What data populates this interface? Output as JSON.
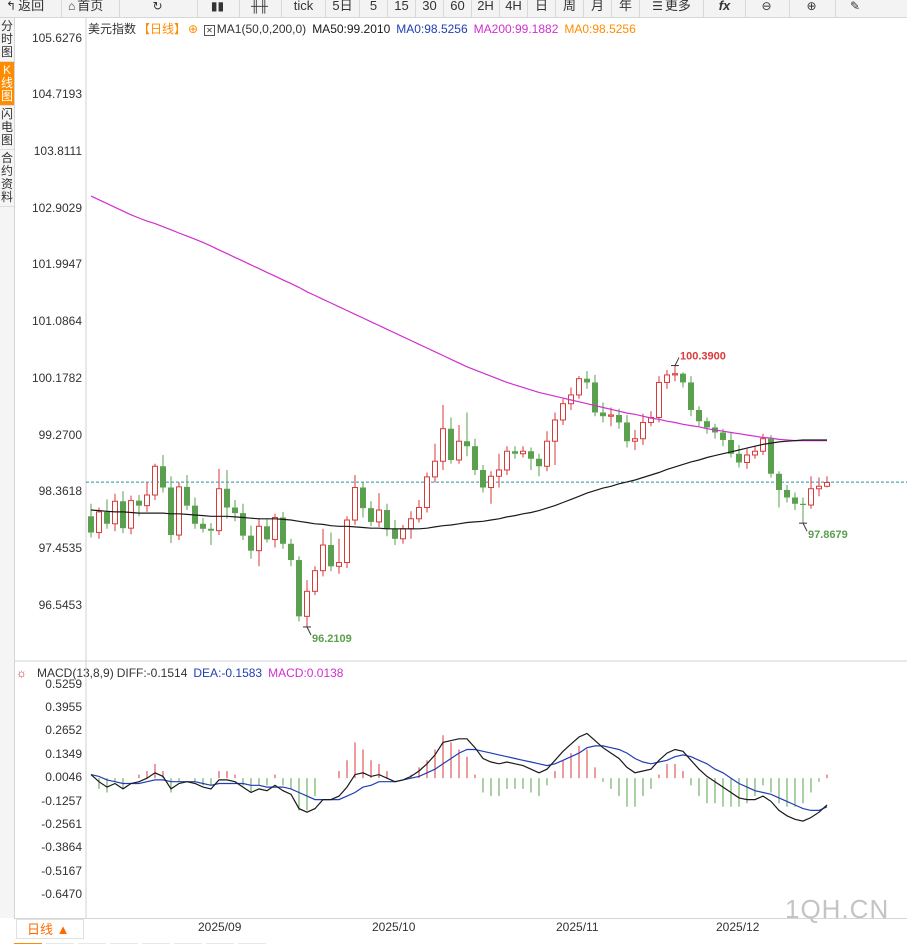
{
  "toolbar": {
    "back_label": "返回",
    "home_label": "首页",
    "tick_label": "tick",
    "periods": [
      "5日",
      "5",
      "15",
      "30",
      "60",
      "2H",
      "4H",
      "日",
      "周",
      "月",
      "年"
    ],
    "more_label": "更多",
    "fx_label": "fx"
  },
  "sidebar": {
    "items": [
      "分时图",
      "K线图",
      "闪电图",
      "合约资料"
    ],
    "active_index": 1
  },
  "main_legend": {
    "symbol": "美元指数",
    "period": "【日线】",
    "ma_name": "MA1(50,0,200,0)",
    "ma50": "MA50:99.2010",
    "ma0a": "MA0:98.5256",
    "ma200": "MA200:99.1882",
    "ma0b": "MA0:98.5256"
  },
  "macd_legend": {
    "name": "MACD(13,8,9)",
    "diff": "DIFF:-0.1514",
    "dea": "DEA:-0.1583",
    "macd": "MACD:0.0138"
  },
  "colors": {
    "up": "#d93a3a",
    "down": "#5aa04e",
    "ma50": "#1a1a1a",
    "ma200": "#d02fcf",
    "current": "#2a8f9c",
    "accent": "#ff8c00"
  },
  "chart_data": [
    {
      "type": "candlestick",
      "title": "美元指数 日线",
      "x_labels": [
        "2025/09",
        "2025/10",
        "2025/11",
        "2025/12"
      ],
      "y_ticks": [
        "105.6276",
        "104.7193",
        "103.8111",
        "102.9029",
        "101.9947",
        "101.0864",
        "100.1782",
        "99.2700",
        "98.3618",
        "97.4535",
        "96.5453"
      ],
      "ylim": [
        95.8,
        106.1
      ],
      "current_price": 98.5256,
      "high_label": "100.3900",
      "low_labels": [
        "96.2109",
        "97.8679"
      ],
      "candles": [
        [
          97.98,
          97.72,
          98.18,
          97.64
        ],
        [
          97.72,
          98.05,
          98.12,
          97.62
        ],
        [
          98.05,
          97.86,
          98.25,
          97.78
        ],
        [
          97.86,
          98.22,
          98.34,
          97.74
        ],
        [
          98.22,
          97.79,
          98.38,
          97.71
        ],
        [
          97.79,
          98.23,
          98.31,
          97.69
        ],
        [
          98.23,
          98.15,
          98.32,
          97.98
        ],
        [
          98.15,
          98.32,
          98.52,
          98.05
        ],
        [
          98.32,
          98.78,
          98.82,
          98.24
        ],
        [
          98.78,
          98.44,
          98.96,
          98.36
        ],
        [
          98.44,
          97.68,
          98.62,
          97.55
        ],
        [
          97.68,
          98.45,
          98.52,
          97.6
        ],
        [
          98.45,
          98.15,
          98.64,
          98.08
        ],
        [
          98.15,
          97.86,
          98.28,
          97.78
        ],
        [
          97.86,
          97.78,
          97.95,
          97.72
        ],
        [
          97.78,
          97.75,
          97.87,
          97.52
        ],
        [
          97.75,
          98.42,
          98.74,
          97.68
        ],
        [
          98.42,
          98.12,
          98.72,
          97.94
        ],
        [
          98.12,
          98.03,
          98.24,
          97.9
        ],
        [
          98.03,
          97.67,
          98.18,
          97.6
        ],
        [
          97.67,
          97.43,
          97.83,
          97.3
        ],
        [
          97.43,
          97.82,
          97.95,
          97.18
        ],
        [
          97.82,
          97.61,
          97.93,
          97.56
        ],
        [
          97.61,
          97.96,
          98.02,
          97.48
        ],
        [
          97.96,
          97.54,
          98.05,
          97.46
        ],
        [
          97.54,
          97.28,
          97.62,
          97.18
        ],
        [
          97.28,
          96.38,
          97.34,
          96.3
        ],
        [
          96.38,
          96.78,
          96.96,
          96.21
        ],
        [
          96.78,
          97.11,
          97.18,
          96.72
        ],
        [
          97.11,
          97.52,
          97.78,
          97.02
        ],
        [
          97.52,
          97.18,
          97.72,
          97.1
        ],
        [
          97.18,
          97.24,
          97.62,
          97.06
        ],
        [
          97.24,
          97.92,
          97.98,
          97.15
        ],
        [
          97.92,
          98.44,
          98.64,
          97.84
        ],
        [
          98.44,
          98.11,
          98.52,
          97.96
        ],
        [
          98.11,
          97.89,
          98.22,
          97.82
        ],
        [
          97.89,
          98.08,
          98.35,
          97.81
        ],
        [
          98.08,
          97.78,
          98.18,
          97.66
        ],
        [
          97.78,
          97.62,
          97.92,
          97.52
        ],
        [
          97.62,
          97.78,
          97.84,
          97.54
        ],
        [
          97.78,
          97.94,
          98.06,
          97.62
        ],
        [
          97.94,
          98.12,
          98.24,
          97.88
        ],
        [
          98.12,
          98.61,
          98.68,
          98.04
        ],
        [
          98.61,
          98.86,
          99.14,
          98.52
        ],
        [
          98.86,
          99.38,
          99.76,
          98.72
        ],
        [
          99.38,
          98.88,
          99.56,
          98.82
        ],
        [
          98.88,
          99.18,
          99.44,
          98.82
        ],
        [
          99.18,
          99.1,
          99.64,
          98.94
        ],
        [
          99.1,
          98.72,
          99.22,
          98.64
        ],
        [
          98.72,
          98.44,
          98.8,
          98.36
        ],
        [
          98.44,
          98.62,
          98.7,
          98.18
        ],
        [
          98.62,
          98.72,
          98.98,
          98.44
        ],
        [
          98.72,
          99.02,
          99.1,
          98.64
        ],
        [
          99.02,
          98.98,
          99.1,
          98.9
        ],
        [
          98.98,
          99.02,
          99.1,
          98.92
        ],
        [
          99.02,
          98.9,
          99.08,
          98.72
        ],
        [
          98.9,
          98.78,
          98.98,
          98.62
        ],
        [
          98.78,
          99.18,
          99.34,
          98.7
        ],
        [
          99.18,
          99.52,
          99.64,
          98.8
        ],
        [
          99.52,
          99.78,
          99.86,
          99.44
        ],
        [
          99.78,
          99.92,
          100.04,
          99.68
        ],
        [
          99.92,
          100.18,
          100.22,
          99.86
        ],
        [
          100.18,
          100.12,
          100.3,
          100.02
        ],
        [
          100.12,
          99.64,
          100.24,
          99.58
        ],
        [
          99.64,
          99.58,
          99.8,
          99.48
        ],
        [
          99.58,
          99.6,
          99.72,
          99.42
        ],
        [
          99.6,
          99.48,
          99.7,
          99.38
        ],
        [
          99.48,
          99.18,
          99.6,
          99.08
        ],
        [
          99.18,
          99.22,
          99.36,
          99.04
        ],
        [
          99.22,
          99.48,
          99.62,
          99.12
        ],
        [
          99.48,
          99.56,
          99.66,
          99.42
        ],
        [
          99.56,
          100.12,
          100.22,
          99.48
        ],
        [
          100.12,
          100.24,
          100.32,
          100.02
        ],
        [
          100.24,
          100.26,
          100.39,
          100.14
        ],
        [
          100.26,
          100.12,
          100.28,
          100.04
        ],
        [
          100.12,
          99.68,
          100.22,
          99.58
        ],
        [
          99.68,
          99.5,
          99.74,
          99.42
        ],
        [
          99.5,
          99.4,
          99.56,
          99.3
        ],
        [
          99.4,
          99.32,
          99.46,
          99.22
        ],
        [
          99.32,
          99.2,
          99.38,
          99.1
        ],
        [
          99.2,
          98.98,
          99.32,
          98.92
        ],
        [
          98.98,
          98.84,
          99.12,
          98.76
        ],
        [
          98.84,
          98.96,
          99.06,
          98.74
        ],
        [
          98.96,
          99.02,
          99.1,
          98.9
        ],
        [
          99.02,
          99.22,
          99.3,
          98.96
        ],
        [
          99.22,
          98.66,
          99.28,
          98.6
        ],
        [
          98.66,
          98.4,
          98.7,
          98.12
        ],
        [
          98.4,
          98.28,
          98.48,
          98.2
        ],
        [
          98.28,
          98.18,
          98.36,
          98.08
        ],
        [
          98.18,
          98.16,
          98.28,
          97.87
        ],
        [
          98.16,
          98.42,
          98.62,
          98.1
        ],
        [
          98.42,
          98.46,
          98.6,
          98.3
        ],
        [
          98.46,
          98.52,
          98.62,
          98.44
        ]
      ],
      "ma50": [
        98.08,
        98.07,
        98.06,
        98.05,
        98.05,
        98.04,
        98.03,
        98.03,
        98.03,
        98.03,
        98.02,
        98.02,
        98.01,
        98.0,
        97.99,
        97.98,
        97.98,
        97.98,
        97.97,
        97.96,
        97.95,
        97.94,
        97.94,
        97.94,
        97.93,
        97.92,
        97.9,
        97.88,
        97.86,
        97.85,
        97.83,
        97.82,
        97.82,
        97.81,
        97.8,
        97.79,
        97.79,
        97.78,
        97.78,
        97.78,
        97.78,
        97.78,
        97.79,
        97.81,
        97.83,
        97.84,
        97.86,
        97.88,
        97.89,
        97.9,
        97.92,
        97.94,
        97.97,
        97.99,
        98.02,
        98.04,
        98.07,
        98.11,
        98.15,
        98.2,
        98.25,
        98.3,
        98.35,
        98.39,
        98.43,
        98.46,
        98.5,
        98.53,
        98.56,
        98.6,
        98.64,
        98.68,
        98.73,
        98.77,
        98.81,
        98.85,
        98.88,
        98.92,
        98.95,
        98.98,
        99.01,
        99.04,
        99.07,
        99.1,
        99.13,
        99.15,
        99.17,
        99.18,
        99.19,
        99.2,
        99.2,
        99.2,
        99.2
      ],
      "ma200": [
        103.1,
        103.04,
        102.98,
        102.92,
        102.86,
        102.8,
        102.75,
        102.7,
        102.66,
        102.61,
        102.56,
        102.51,
        102.46,
        102.41,
        102.36,
        102.3,
        102.24,
        102.18,
        102.12,
        102.06,
        102.0,
        101.94,
        101.88,
        101.82,
        101.76,
        101.7,
        101.64,
        101.57,
        101.51,
        101.45,
        101.39,
        101.33,
        101.27,
        101.21,
        101.15,
        101.09,
        101.03,
        100.97,
        100.91,
        100.85,
        100.79,
        100.73,
        100.67,
        100.61,
        100.55,
        100.49,
        100.43,
        100.37,
        100.32,
        100.27,
        100.22,
        100.17,
        100.12,
        100.08,
        100.04,
        100.0,
        99.96,
        99.93,
        99.9,
        99.87,
        99.84,
        99.81,
        99.78,
        99.75,
        99.72,
        99.69,
        99.66,
        99.63,
        99.61,
        99.58,
        99.55,
        99.53,
        99.5,
        99.48,
        99.45,
        99.43,
        99.41,
        99.38,
        99.36,
        99.34,
        99.32,
        99.3,
        99.28,
        99.26,
        99.24,
        99.23,
        99.21,
        99.2,
        99.19,
        99.19,
        99.19,
        99.19,
        99.19
      ]
    },
    {
      "type": "macd",
      "title": "MACD(13,8,9)",
      "y_ticks": [
        "0.5259",
        "0.3955",
        "0.2652",
        "0.1349",
        "0.0046",
        "-0.1257",
        "-0.2561",
        "-0.3864",
        "-0.5167",
        "-0.6470"
      ],
      "ylim": [
        -0.7,
        0.58
      ],
      "diff": [
        0.02,
        -0.02,
        -0.05,
        -0.03,
        -0.06,
        -0.03,
        -0.02,
        0.0,
        0.03,
        0.01,
        -0.06,
        -0.03,
        -0.02,
        -0.03,
        -0.05,
        -0.06,
        -0.01,
        -0.01,
        -0.02,
        -0.05,
        -0.08,
        -0.06,
        -0.07,
        -0.04,
        -0.07,
        -0.09,
        -0.17,
        -0.19,
        -0.17,
        -0.12,
        -0.12,
        -0.1,
        -0.05,
        0.02,
        0.03,
        0.01,
        0.02,
        0.0,
        -0.02,
        -0.01,
        0.01,
        0.04,
        0.08,
        0.13,
        0.2,
        0.21,
        0.22,
        0.22,
        0.17,
        0.11,
        0.09,
        0.08,
        0.09,
        0.08,
        0.07,
        0.05,
        0.03,
        0.05,
        0.1,
        0.15,
        0.19,
        0.23,
        0.25,
        0.21,
        0.17,
        0.14,
        0.11,
        0.06,
        0.03,
        0.04,
        0.05,
        0.1,
        0.14,
        0.16,
        0.15,
        0.1,
        0.05,
        0.01,
        -0.02,
        -0.05,
        -0.08,
        -0.11,
        -0.12,
        -0.12,
        -0.1,
        -0.13,
        -0.18,
        -0.21,
        -0.23,
        -0.24,
        -0.22,
        -0.19,
        -0.15
      ],
      "dea": [
        0.02,
        0.01,
        -0.01,
        -0.02,
        -0.03,
        -0.03,
        -0.03,
        -0.02,
        -0.01,
        -0.01,
        -0.02,
        -0.02,
        -0.02,
        -0.02,
        -0.03,
        -0.04,
        -0.03,
        -0.03,
        -0.03,
        -0.03,
        -0.04,
        -0.04,
        -0.05,
        -0.05,
        -0.05,
        -0.06,
        -0.08,
        -0.1,
        -0.12,
        -0.12,
        -0.12,
        -0.12,
        -0.1,
        -0.08,
        -0.05,
        -0.04,
        -0.02,
        -0.02,
        -0.02,
        -0.01,
        0.0,
        0.01,
        0.03,
        0.05,
        0.08,
        0.11,
        0.14,
        0.16,
        0.16,
        0.15,
        0.14,
        0.13,
        0.12,
        0.11,
        0.1,
        0.09,
        0.08,
        0.07,
        0.08,
        0.1,
        0.12,
        0.14,
        0.17,
        0.18,
        0.18,
        0.17,
        0.16,
        0.14,
        0.11,
        0.09,
        0.08,
        0.09,
        0.1,
        0.12,
        0.13,
        0.12,
        0.1,
        0.08,
        0.05,
        0.03,
        0.0,
        -0.03,
        -0.05,
        -0.07,
        -0.08,
        -0.09,
        -0.11,
        -0.13,
        -0.15,
        -0.17,
        -0.18,
        -0.18,
        -0.16
      ]
    }
  ]
}
